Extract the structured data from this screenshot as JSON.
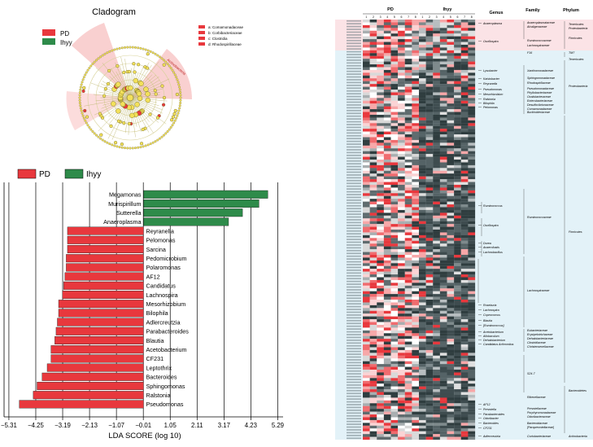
{
  "cladogram": {
    "title": "Cladogram",
    "legend": [
      {
        "label": "PD",
        "color": "#e8383d"
      },
      {
        "label": "Ihyy",
        "color": "#2e8b4a"
      }
    ],
    "key": [
      "a: Comamonadaceae",
      "b: Corbibacteriaceae",
      "c: Clostridia",
      "d: Rhodospirillaceae"
    ],
    "clade_label": "Actinobacteria"
  },
  "lda": {
    "legend": [
      {
        "label": "PD",
        "color": "#e8383d"
      },
      {
        "label": "Ihyy",
        "color": "#2e8b4a"
      }
    ]
  },
  "chart_data": [
    {
      "type": "bar",
      "orientation": "horizontal",
      "title": "",
      "xlabel": "LDA SCORE (log 10)",
      "ylabel": "",
      "xlim": [
        -5.5,
        5.5
      ],
      "tick_labels": [
        "−5.31",
        "−4.25",
        "−3.19",
        "−2.13",
        "−1.07",
        "−0.01",
        "1.05",
        "2.11",
        "3.17",
        "4.23",
        "5.29"
      ],
      "ticks": [
        -5.31,
        -4.25,
        -3.19,
        -2.13,
        -1.07,
        -0.01,
        1.05,
        2.11,
        3.17,
        4.23,
        5.29
      ],
      "grid": true,
      "series": [
        {
          "name": "PD",
          "color": "#e8383d"
        },
        {
          "name": "Ihyy",
          "color": "#2e8b4a"
        }
      ],
      "categories": [
        "Megamonas",
        "Murispirillum",
        "Sutterella",
        "Anaeroplasma",
        "Reyranella",
        "Pelomonas",
        "Sarcina",
        "Pedomicrobium",
        "Polaromonas",
        "AF12",
        "Candidatus",
        "Lachnospira",
        "Mesorhizobium",
        "Bilophila",
        "Adlercreutzia",
        "Parabacteroides",
        "Blautia",
        "Acetobacterium",
        "CF231",
        "Leptothrix",
        "Bacteroides",
        "Sphingomonas",
        "Ralstonia",
        "Pseudomonas"
      ],
      "values": [
        4.9,
        4.55,
        3.9,
        3.35,
        -3.0,
        -3.0,
        -3.0,
        -3.05,
        -3.05,
        -3.1,
        -3.15,
        -3.2,
        -3.35,
        -3.35,
        -3.4,
        -3.45,
        -3.5,
        -3.65,
        -3.65,
        -3.8,
        -4.0,
        -4.2,
        -4.35,
        -4.9
      ],
      "groups": [
        "Ihyy",
        "Ihyy",
        "Ihyy",
        "Ihyy",
        "PD",
        "PD",
        "PD",
        "PD",
        "PD",
        "PD",
        "PD",
        "PD",
        "PD",
        "PD",
        "PD",
        "PD",
        "PD",
        "PD",
        "PD",
        "PD",
        "PD",
        "PD",
        "PD",
        "PD"
      ]
    },
    {
      "type": "heatmap",
      "title": "",
      "column_groups": [
        "PD",
        "Ihyy"
      ],
      "column_numbers": [
        "1",
        "2",
        "3",
        "4",
        "5",
        "6",
        "7",
        "8"
      ],
      "header_columns": [
        "Genus",
        "Family",
        "Phylum"
      ],
      "genus_labels": [
        "Anaeroplasma",
        "Oscillospira",
        "Lysobacter",
        "Kaistobacter",
        "Reyranella",
        "Pseudomonas",
        "Mesorhizobium",
        "Ralstonia",
        "Bilophila",
        "Pelomonas",
        "Ruminococcus",
        "Oscillospira",
        "Dorea",
        "Anaerofustis",
        "Lachnobacillus",
        "Roseburia",
        "Lachnospira",
        "Coprococcus",
        "Blautia",
        "[Ruminococcus]",
        "Acetobacterium",
        "Allobaculum",
        "Dehalobacterium",
        "Candidatus Arthromitus",
        "AF12",
        "Prevotella",
        "Parabacteroides",
        "Odoribacter",
        "Bacteroides",
        "CF231",
        "Adlercreutzia"
      ],
      "family_labels": [
        "Anaeroplasmataceae",
        "Alcaligenaceae",
        "Ruminococcaceae",
        "Lachnospiraceae",
        "F16",
        "Xanthomonadaceae",
        "Sphingomonadaceae",
        "Rhodospirillaceae",
        "Pseudomonadaceae",
        "Phyllobacteriaceae",
        "Oxalobacteraceae",
        "Enterobacteriaceae",
        "Desulfovibrionaceae",
        "Comamonadaceae",
        "Burkholderiaceae",
        "Ruminococcaceae",
        "Lachnospiraceae",
        "Eubacteriaceae",
        "Erysipelotrichaceae",
        "Dehalobacteriaceae",
        "Clostridiaceae",
        "Christensenellaceae",
        "S24-7",
        "Rikenellaceae",
        "Prevotellaceae",
        "Porphyromonadaceae",
        "Odoribacteraceae",
        "Bacteroidaceae",
        "[Paraprevotellaceae]",
        "Coriobacteriaceae"
      ],
      "phylum_labels": [
        "Tenericutes",
        "Proteobacteria",
        "Firmicutes",
        "TM7",
        "Tenericutes",
        "Proteobacteria",
        "Firmicutes",
        "Bacteroidetes",
        "Actinobacteria"
      ]
    }
  ]
}
